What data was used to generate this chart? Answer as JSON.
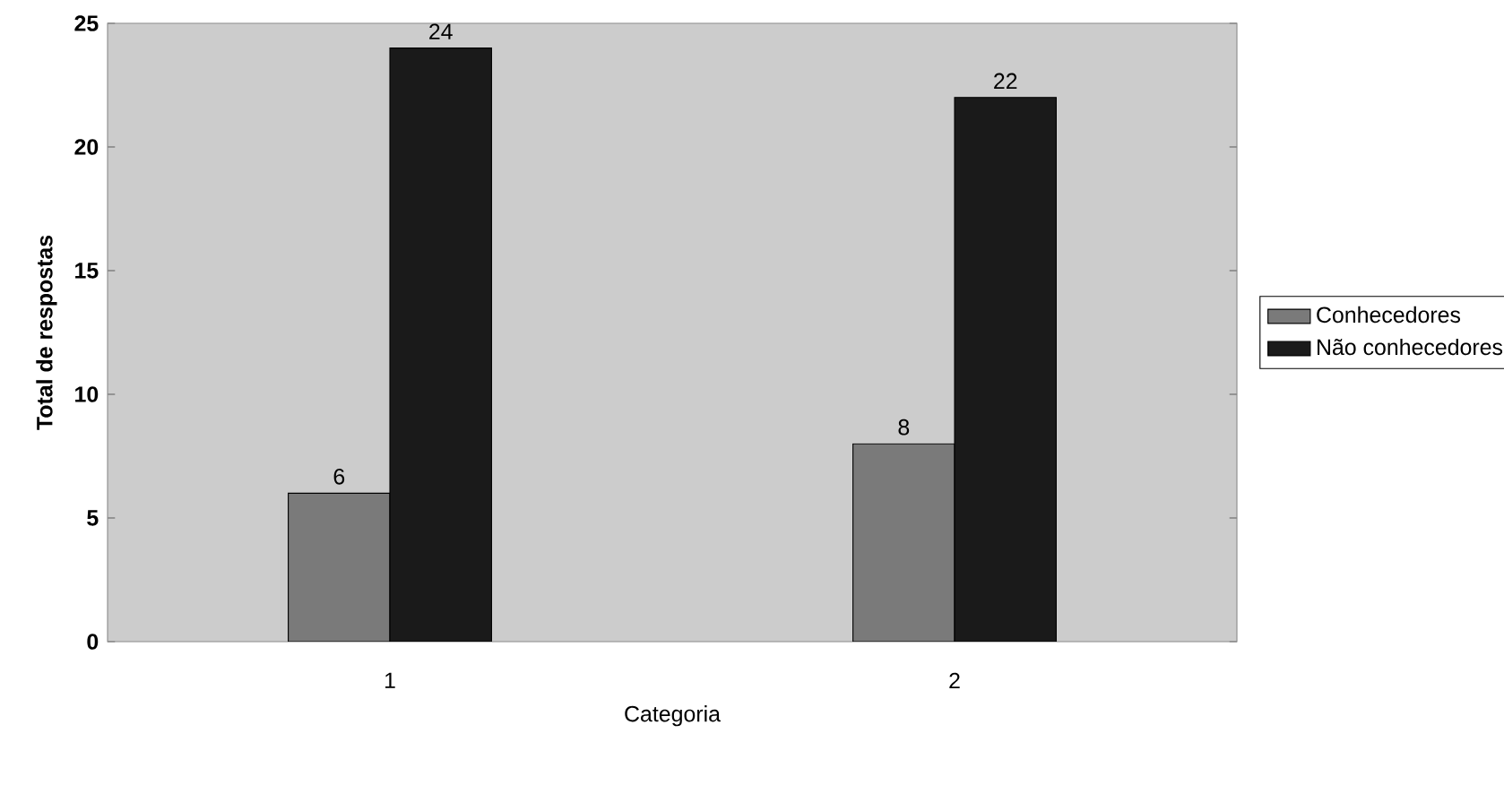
{
  "chart_data": {
    "type": "bar",
    "xlabel": "Categoria",
    "ylabel": "Total de respostas",
    "categories": [
      "1",
      "2"
    ],
    "series": [
      {
        "name": "Conhecedores",
        "color": "#7a7a7a",
        "values": [
          6,
          8
        ]
      },
      {
        "name": "Não conhecedores",
        "color": "#1a1a1a",
        "values": [
          24,
          22
        ]
      }
    ],
    "ylim": [
      0,
      25
    ],
    "yticks": [
      0,
      5,
      10,
      15,
      20,
      25
    ],
    "data_labels": true,
    "legend": "right",
    "grid": false
  }
}
